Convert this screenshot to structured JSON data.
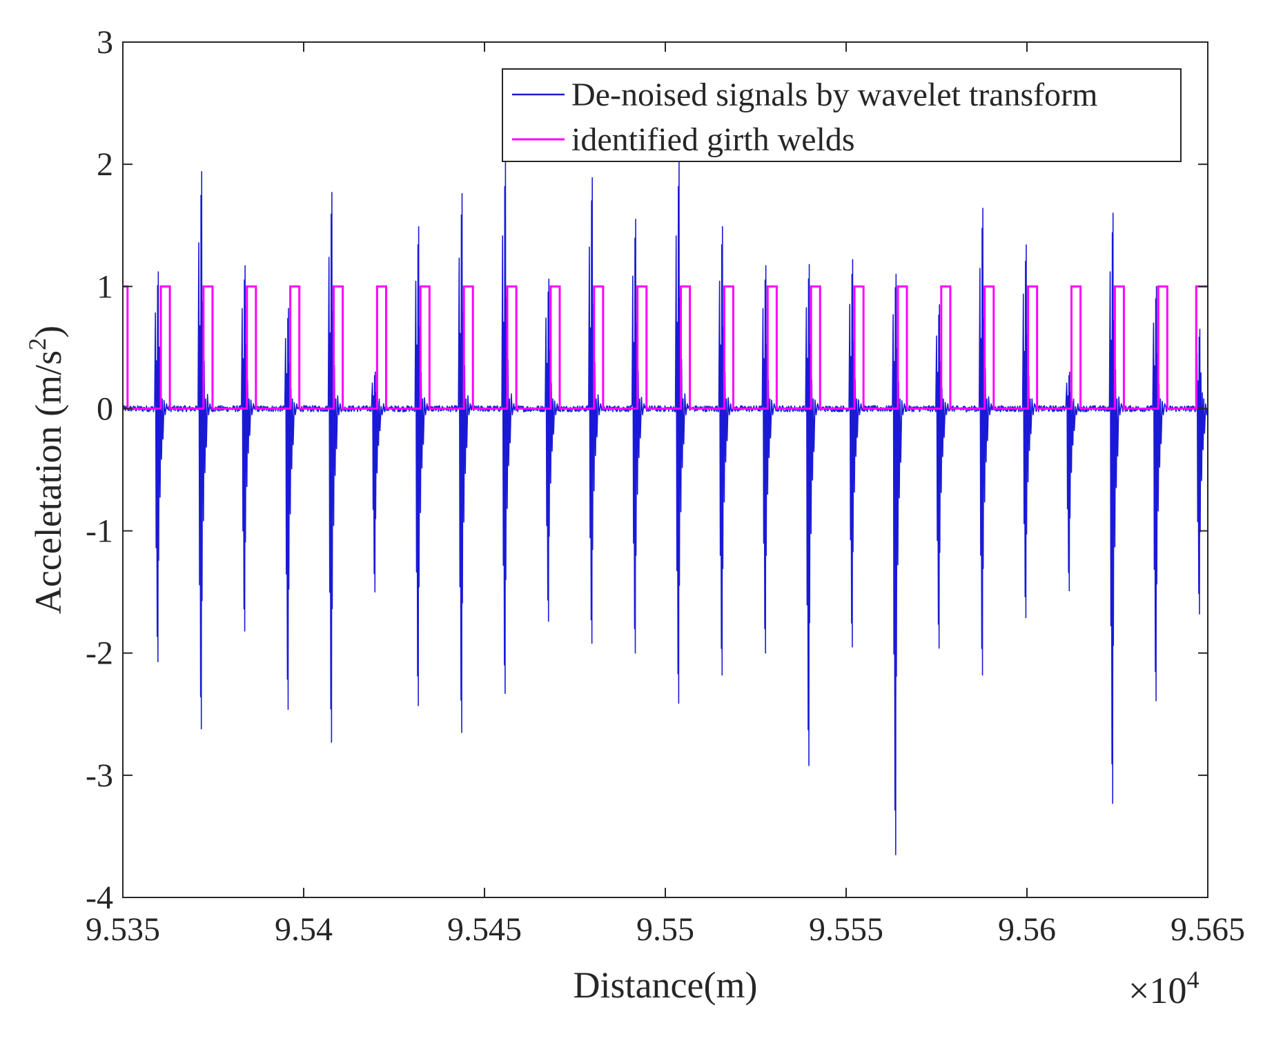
{
  "chart_data": {
    "type": "line",
    "xlabel": "Distance(m)",
    "ylabel_main": "Acceletation (m/s",
    "ylabel_sup": "2",
    "ylabel_end": ")",
    "x_exponent_text": "×10",
    "x_exponent_power": "4",
    "xlim": [
      9.535,
      9.565
    ],
    "ylim": [
      -4,
      3
    ],
    "x_ticks": [
      9.535,
      9.54,
      9.545,
      9.55,
      9.555,
      9.56,
      9.565
    ],
    "x_tick_labels": [
      "9.535",
      "9.54",
      "9.545",
      "9.55",
      "9.555",
      "9.56",
      "9.565"
    ],
    "y_ticks": [
      -4,
      -3,
      -2,
      -1,
      0,
      1,
      2,
      3
    ],
    "y_tick_labels": [
      "-4",
      "-3",
      "-2",
      "-1",
      "0",
      "1",
      "2",
      "3"
    ],
    "grid": false,
    "legend_position": "top-right",
    "series": [
      {
        "name": "De-noised signals by wavelet transform",
        "color": "#1a1ad6",
        "kind": "spikes",
        "baseline": 0,
        "bursts": [
          {
            "x": 9.5361,
            "pos": 1.12,
            "neg": -2.07
          },
          {
            "x": 9.5373,
            "pos": 1.94,
            "neg": -2.62
          },
          {
            "x": 9.5385,
            "pos": 1.17,
            "neg": -1.82
          },
          {
            "x": 9.5397,
            "pos": 0.82,
            "neg": -2.46
          },
          {
            "x": 9.5409,
            "pos": 1.77,
            "neg": -2.73
          },
          {
            "x": 9.5421,
            "pos": 0.3,
            "neg": -1.5
          },
          {
            "x": 9.5433,
            "pos": 1.49,
            "neg": -2.43
          },
          {
            "x": 9.5445,
            "pos": 1.76,
            "neg": -2.65
          },
          {
            "x": 9.5457,
            "pos": 2.02,
            "neg": -2.33
          },
          {
            "x": 9.5469,
            "pos": 1.06,
            "neg": -1.74
          },
          {
            "x": 9.5481,
            "pos": 1.89,
            "neg": -1.92
          },
          {
            "x": 9.5493,
            "pos": 1.55,
            "neg": -2.0
          },
          {
            "x": 9.5505,
            "pos": 2.02,
            "neg": -2.41
          },
          {
            "x": 9.5517,
            "pos": 1.49,
            "neg": -2.18
          },
          {
            "x": 9.5529,
            "pos": 1.17,
            "neg": -2.0
          },
          {
            "x": 9.5541,
            "pos": 1.18,
            "neg": -2.92
          },
          {
            "x": 9.5553,
            "pos": 1.22,
            "neg": -1.95
          },
          {
            "x": 9.5565,
            "pos": 1.1,
            "neg": -3.65
          },
          {
            "x": 9.5577,
            "pos": 0.85,
            "neg": -1.96
          },
          {
            "x": 9.5589,
            "pos": 1.64,
            "neg": -2.18
          },
          {
            "x": 9.5601,
            "pos": 1.34,
            "neg": -1.71
          },
          {
            "x": 9.5613,
            "pos": 0.3,
            "neg": -1.49
          },
          {
            "x": 9.5625,
            "pos": 1.6,
            "neg": -3.23
          },
          {
            "x": 9.5637,
            "pos": 1.0,
            "neg": -2.39
          },
          {
            "x": 9.5649,
            "pos": 0.65,
            "neg": -1.68
          }
        ]
      },
      {
        "name": "identified girth welds",
        "color": "#ff00ff",
        "kind": "pulses",
        "low": 0,
        "high": 1,
        "pulses": [
          [
            9.535,
            9.53513
          ],
          [
            9.53605,
            9.5363
          ],
          [
            9.53723,
            9.53748
          ],
          [
            9.53843,
            9.53868
          ],
          [
            9.53963,
            9.53988
          ],
          [
            9.54083,
            9.54108
          ],
          [
            9.54203,
            9.54228
          ],
          [
            9.54323,
            9.54348
          ],
          [
            9.54443,
            9.54468
          ],
          [
            9.54563,
            9.54588
          ],
          [
            9.54683,
            9.54708
          ],
          [
            9.54803,
            9.54828
          ],
          [
            9.54923,
            9.54948
          ],
          [
            9.55043,
            9.55068
          ],
          [
            9.55163,
            9.55188
          ],
          [
            9.55283,
            9.55308
          ],
          [
            9.55403,
            9.55428
          ],
          [
            9.55523,
            9.55548
          ],
          [
            9.55643,
            9.55668
          ],
          [
            9.55763,
            9.55788
          ],
          [
            9.55883,
            9.55908
          ],
          [
            9.56003,
            9.56028
          ],
          [
            9.56123,
            9.56148
          ],
          [
            9.56243,
            9.56268
          ],
          [
            9.56363,
            9.56388
          ],
          [
            9.56468,
            9.565
          ]
        ]
      }
    ]
  }
}
